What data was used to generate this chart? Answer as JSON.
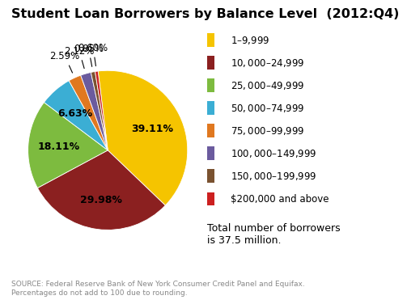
{
  "title": "Student Loan Borrowers by Balance Level  (2012:Q4)",
  "values": [
    39.11,
    29.98,
    18.11,
    6.63,
    2.59,
    2.12,
    0.85,
    0.6
  ],
  "labels": [
    "$1 – $9,999",
    "$10,000 – $24,999",
    "$25,000 – $49,999",
    "$50,000 – $74,999",
    "$75,000 – $99,999",
    "$100,000 – $149,999",
    "$150,000 – $199,999",
    "$200,000 and above"
  ],
  "colors": [
    "#F5C400",
    "#8B2020",
    "#7DBB3F",
    "#3BAED4",
    "#E07820",
    "#6B5B9E",
    "#7A5230",
    "#CC2020"
  ],
  "pct_labels": [
    "39.11%",
    "29.98%",
    "18.11%",
    "6.63%",
    "2.59%",
    "2.12%",
    "0.85%",
    "0.60%"
  ],
  "source_text": "SOURCE: Federal Reserve Bank of New York Consumer Credit Panel and Equifax.\nPercentages do not add to 100 due to rounding.",
  "note_text": "Total number of borrowers\nis 37.5 million.",
  "background_color": "#ffffff",
  "title_fontsize": 11.5,
  "legend_fontsize": 8.5,
  "pct_fontsize": 9,
  "note_fontsize": 9,
  "source_fontsize": 6.5
}
